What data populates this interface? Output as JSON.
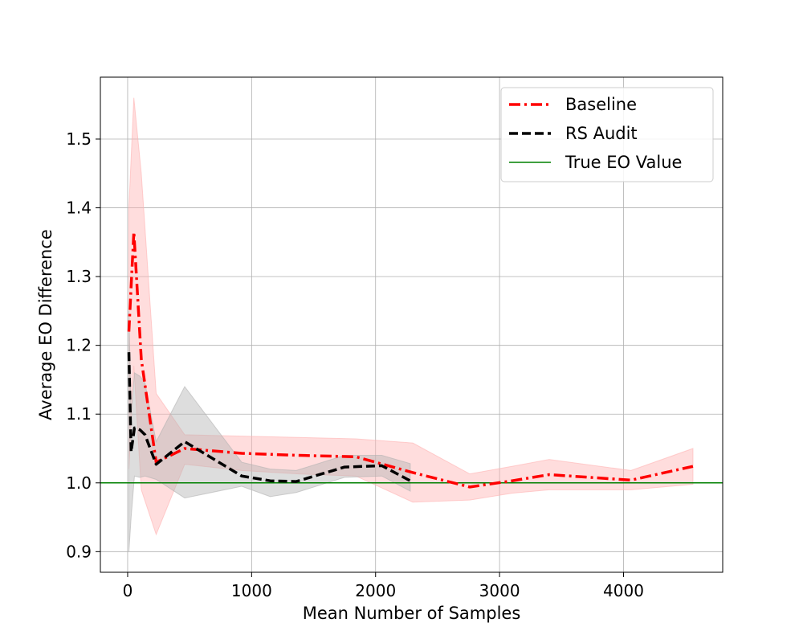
{
  "chart_data": {
    "type": "line",
    "xlabel": "Mean Number of Samples",
    "ylabel": "Average EO Difference",
    "xlim": [
      -220,
      4800
    ],
    "ylim": [
      0.87,
      1.59
    ],
    "x_ticks": [
      0,
      1000,
      2000,
      3000,
      4000
    ],
    "y_ticks": [
      0.9,
      1.0,
      1.1,
      1.2,
      1.3,
      1.4,
      1.5
    ],
    "grid": true,
    "legend_position": "top-right",
    "reference_line": {
      "name": "True EO Value",
      "y": 1.0,
      "color": "#008000"
    },
    "series": [
      {
        "name": "Baseline",
        "style": "dashdot",
        "color": "#ff0000",
        "band_color": "#ffb3b3",
        "points": [
          [
            10,
            1.22
          ],
          [
            50,
            1.365
          ],
          [
            110,
            1.18
          ],
          [
            230,
            1.03
          ],
          [
            460,
            1.05
          ],
          [
            920,
            1.043
          ],
          [
            1380,
            1.04
          ],
          [
            1840,
            1.038
          ],
          [
            2300,
            1.015
          ],
          [
            2760,
            0.994
          ],
          [
            3100,
            1.003
          ],
          [
            3400,
            1.012
          ],
          [
            4060,
            1.004
          ],
          [
            4560,
            1.024
          ]
        ],
        "band_upper": [
          [
            10,
            1.4
          ],
          [
            50,
            1.56
          ],
          [
            110,
            1.45
          ],
          [
            230,
            1.13
          ],
          [
            460,
            1.07
          ],
          [
            920,
            1.068
          ],
          [
            1380,
            1.066
          ],
          [
            1840,
            1.064
          ],
          [
            2300,
            1.058
          ],
          [
            2760,
            1.013
          ],
          [
            3100,
            1.024
          ],
          [
            3400,
            1.034
          ],
          [
            4060,
            1.018
          ],
          [
            4560,
            1.05
          ]
        ],
        "band_lower": [
          [
            10,
            1.02
          ],
          [
            50,
            1.17
          ],
          [
            110,
            0.99
          ],
          [
            230,
            0.925
          ],
          [
            460,
            1.027
          ],
          [
            920,
            1.018
          ],
          [
            1380,
            1.013
          ],
          [
            1840,
            1.01
          ],
          [
            2300,
            0.972
          ],
          [
            2760,
            0.975
          ],
          [
            3100,
            0.985
          ],
          [
            3400,
            0.99
          ],
          [
            4060,
            0.99
          ],
          [
            4560,
            0.998
          ]
        ]
      },
      {
        "name": "RS Audit",
        "style": "dashed",
        "color": "#000000",
        "band_color": "#b3b3b3",
        "points": [
          [
            10,
            1.19
          ],
          [
            28,
            1.045
          ],
          [
            55,
            1.08
          ],
          [
            100,
            1.077
          ],
          [
            140,
            1.07
          ],
          [
            230,
            1.027
          ],
          [
            460,
            1.06
          ],
          [
            920,
            1.01
          ],
          [
            1150,
            1.003
          ],
          [
            1360,
            1.002
          ],
          [
            1750,
            1.023
          ],
          [
            2050,
            1.025
          ],
          [
            2280,
            1.003
          ]
        ],
        "band_upper": [
          [
            10,
            1.25
          ],
          [
            28,
            1.1
          ],
          [
            55,
            1.16
          ],
          [
            100,
            1.155
          ],
          [
            140,
            1.145
          ],
          [
            230,
            1.06
          ],
          [
            460,
            1.14
          ],
          [
            920,
            1.03
          ],
          [
            1150,
            1.02
          ],
          [
            1360,
            1.018
          ],
          [
            1750,
            1.04
          ],
          [
            2050,
            1.04
          ],
          [
            2280,
            1.028
          ]
        ],
        "band_lower": [
          [
            10,
            0.9
          ],
          [
            28,
            0.95
          ],
          [
            55,
            1.01
          ],
          [
            100,
            1.008
          ],
          [
            140,
            1.01
          ],
          [
            230,
            1.005
          ],
          [
            460,
            0.978
          ],
          [
            920,
            0.995
          ],
          [
            1150,
            0.98
          ],
          [
            1360,
            0.986
          ],
          [
            1750,
            1.008
          ],
          [
            2050,
            1.01
          ],
          [
            2280,
            0.988
          ]
        ]
      }
    ]
  }
}
